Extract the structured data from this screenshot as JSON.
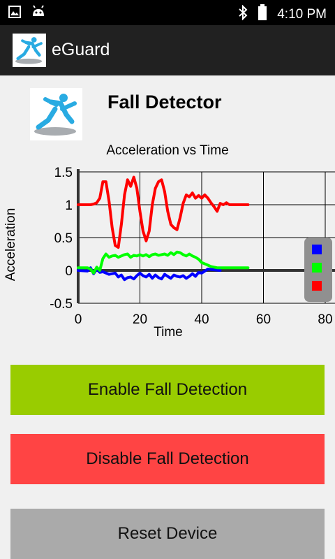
{
  "status_bar": {
    "time": "4:10 PM",
    "left_icons": [
      "image-icon",
      "android-icon"
    ],
    "right_icons": [
      "bluetooth-icon",
      "battery-icon"
    ]
  },
  "action_bar": {
    "title": "eGuard",
    "background": "#212121"
  },
  "header": {
    "title": "Fall Detector"
  },
  "buttons": {
    "enable_label": "Enable Fall Detection",
    "disable_label": "Disable Fall Detection",
    "reset_label": "Reset Device",
    "enable_color": "#99cc00",
    "disable_color": "#ff4444",
    "reset_color": "#aaaaaa"
  },
  "chart_data": {
    "type": "line",
    "title": "Acceleration vs Time",
    "xlabel": "Time",
    "ylabel": "Acceleration",
    "xlim": [
      0,
      80
    ],
    "ylim": [
      -0.5,
      1.5
    ],
    "x_ticks": [
      "0",
      "20",
      "40",
      "60",
      "80"
    ],
    "y_ticks": [
      "1.5",
      "1",
      "0.5",
      "0",
      "-0.5"
    ],
    "grid": true,
    "legend_position": "right",
    "series": [
      {
        "color": "#0000ff",
        "points": [
          [
            0,
            0
          ],
          [
            3,
            -0.01
          ],
          [
            4,
            0.04
          ],
          [
            5,
            -0.05
          ],
          [
            6,
            0.02
          ],
          [
            7,
            -0.03
          ],
          [
            8,
            -0.02
          ],
          [
            10,
            -0.06
          ],
          [
            11,
            -0.05
          ],
          [
            12,
            -0.04
          ],
          [
            13,
            -0.1
          ],
          [
            14,
            -0.07
          ],
          [
            15,
            -0.14
          ],
          [
            16,
            -0.11
          ],
          [
            17,
            -0.1
          ],
          [
            18,
            -0.13
          ],
          [
            19,
            -0.08
          ],
          [
            20,
            -0.04
          ],
          [
            21,
            -0.08
          ],
          [
            22,
            -0.1
          ],
          [
            23,
            -0.06
          ],
          [
            24,
            -0.12
          ],
          [
            25,
            -0.07
          ],
          [
            26,
            -0.11
          ],
          [
            27,
            -0.13
          ],
          [
            28,
            -0.06
          ],
          [
            29,
            -0.09
          ],
          [
            30,
            -0.12
          ],
          [
            31,
            -0.07
          ],
          [
            32,
            -0.09
          ],
          [
            33,
            -0.1
          ],
          [
            34,
            -0.08
          ],
          [
            35,
            -0.12
          ],
          [
            36,
            -0.09
          ],
          [
            37,
            -0.05
          ],
          [
            38,
            -0.09
          ],
          [
            39,
            -0.03
          ],
          [
            40,
            -0.04
          ],
          [
            41,
            -0.01
          ],
          [
            42,
            0.02
          ],
          [
            44,
            0.01
          ],
          [
            46,
            0.0
          ]
        ]
      },
      {
        "color": "#00ff00",
        "points": [
          [
            0,
            0.04
          ],
          [
            3,
            0.04
          ],
          [
            4,
            0.02
          ],
          [
            5,
            -0.04
          ],
          [
            6,
            0.05
          ],
          [
            7,
            0.0
          ],
          [
            8,
            0.18
          ],
          [
            9,
            0.25
          ],
          [
            10,
            0.2
          ],
          [
            11,
            0.22
          ],
          [
            12,
            0.23
          ],
          [
            13,
            0.2
          ],
          [
            14,
            0.22
          ],
          [
            15,
            0.24
          ],
          [
            16,
            0.25
          ],
          [
            17,
            0.2
          ],
          [
            18,
            0.23
          ],
          [
            19,
            0.22
          ],
          [
            20,
            0.24
          ],
          [
            21,
            0.22
          ],
          [
            22,
            0.24
          ],
          [
            23,
            0.21
          ],
          [
            24,
            0.24
          ],
          [
            25,
            0.25
          ],
          [
            26,
            0.23
          ],
          [
            27,
            0.24
          ],
          [
            28,
            0.25
          ],
          [
            29,
            0.23
          ],
          [
            30,
            0.27
          ],
          [
            31,
            0.24
          ],
          [
            32,
            0.28
          ],
          [
            33,
            0.27
          ],
          [
            34,
            0.24
          ],
          [
            35,
            0.22
          ],
          [
            36,
            0.25
          ],
          [
            37,
            0.22
          ],
          [
            38,
            0.2
          ],
          [
            39,
            0.17
          ],
          [
            40,
            0.12
          ],
          [
            41,
            0.1
          ],
          [
            42,
            0.08
          ],
          [
            43,
            0.06
          ],
          [
            45,
            0.04
          ],
          [
            50,
            0.04
          ],
          [
            55,
            0.04
          ]
        ]
      },
      {
        "color": "#ff0000",
        "points": [
          [
            0,
            1.0
          ],
          [
            4,
            1.0
          ],
          [
            5,
            1.01
          ],
          [
            6,
            1.03
          ],
          [
            7,
            1.1
          ],
          [
            8,
            1.35
          ],
          [
            9,
            1.35
          ],
          [
            10,
            1.05
          ],
          [
            11,
            0.65
          ],
          [
            12,
            0.38
          ],
          [
            13,
            0.35
          ],
          [
            14,
            0.7
          ],
          [
            15,
            1.15
          ],
          [
            16,
            1.38
          ],
          [
            17,
            1.28
          ],
          [
            18,
            1.42
          ],
          [
            19,
            1.25
          ],
          [
            20,
            0.9
          ],
          [
            21,
            0.6
          ],
          [
            22,
            0.45
          ],
          [
            23,
            0.6
          ],
          [
            24,
            1.0
          ],
          [
            25,
            1.25
          ],
          [
            26,
            1.35
          ],
          [
            27,
            1.38
          ],
          [
            28,
            1.2
          ],
          [
            29,
            0.9
          ],
          [
            30,
            0.7
          ],
          [
            31,
            0.65
          ],
          [
            32,
            0.62
          ],
          [
            33,
            0.8
          ],
          [
            34,
            1.02
          ],
          [
            35,
            1.15
          ],
          [
            36,
            1.12
          ],
          [
            37,
            1.18
          ],
          [
            38,
            1.1
          ],
          [
            39,
            1.14
          ],
          [
            40,
            1.1
          ],
          [
            41,
            1.15
          ],
          [
            42,
            1.1
          ],
          [
            43,
            1.03
          ],
          [
            44,
            0.97
          ],
          [
            45,
            0.9
          ],
          [
            46,
            1.02
          ],
          [
            47,
            1.0
          ],
          [
            48,
            1.03
          ],
          [
            49,
            1.0
          ],
          [
            50,
            1.0
          ],
          [
            55,
            1.0
          ]
        ]
      }
    ]
  }
}
